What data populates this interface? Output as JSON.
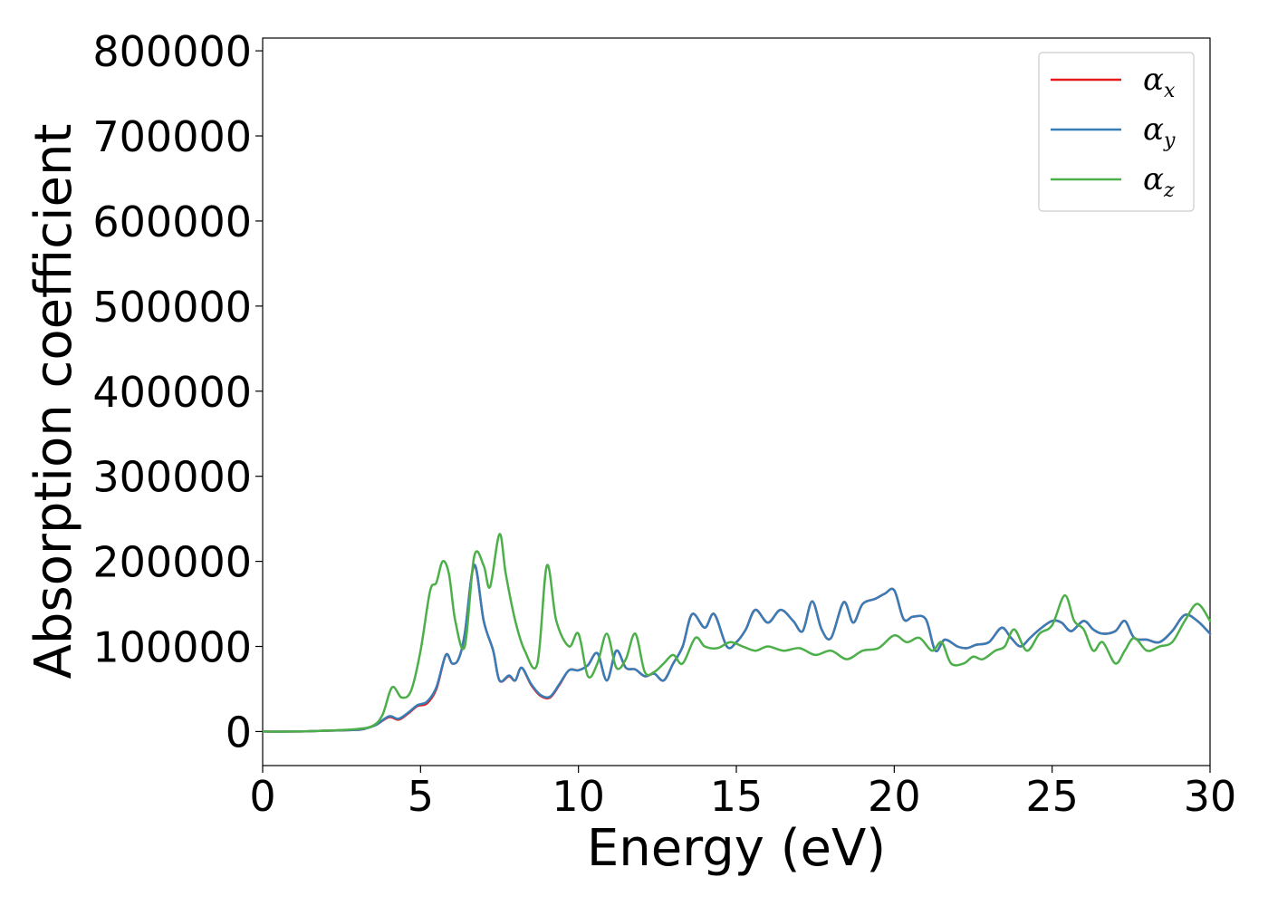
{
  "chart_data": {
    "type": "line",
    "title": "",
    "xlabel": "Energy (eV)",
    "ylabel": "Absorption coefficient",
    "xlim": [
      0,
      30
    ],
    "ylim": [
      -40000,
      815000
    ],
    "xticks": [
      0,
      5,
      10,
      15,
      20,
      25,
      30
    ],
    "yticks": [
      0,
      100000,
      200000,
      300000,
      400000,
      500000,
      600000,
      700000,
      800000
    ],
    "grid": false,
    "legend_position": "top-right",
    "colors": {
      "alpha_x": "#e41a1c",
      "alpha_y": "#377eb8",
      "alpha_z": "#4daf4a"
    },
    "legend": [
      {
        "symbol": "α",
        "sub": "x"
      },
      {
        "symbol": "α",
        "sub": "y"
      },
      {
        "symbol": "α",
        "sub": "z"
      }
    ],
    "series": [
      {
        "key": "alpha_x",
        "x": [
          0,
          1,
          2,
          3,
          3.3,
          3.6,
          4,
          4.3,
          4.6,
          4.9,
          5.2,
          5.5,
          5.8,
          6,
          6.2,
          6.4,
          6.7,
          7,
          7.3,
          7.5,
          7.8,
          8,
          8.2,
          8.5,
          8.8,
          9.1,
          9.4,
          9.7,
          10,
          10.3,
          10.6,
          10.9,
          11.2,
          11.5,
          11.8,
          12.1,
          12.4,
          12.7,
          13,
          13.3,
          13.6,
          14,
          14.3,
          14.7,
          15,
          15.3,
          15.6,
          16,
          16.4,
          16.8,
          17.1,
          17.4,
          17.7,
          18,
          18.4,
          18.7,
          19,
          19.4,
          19.7,
          20,
          20.3,
          20.6,
          21,
          21.3,
          21.6,
          22,
          22.3,
          22.6,
          23,
          23.4,
          23.7,
          24,
          24.3,
          24.6,
          25,
          25.3,
          25.6,
          26,
          26.3,
          26.6,
          27,
          27.3,
          27.6,
          28,
          28.4,
          28.8,
          29.2,
          29.6,
          30
        ],
        "y": [
          0,
          0,
          1000,
          2000,
          4000,
          8000,
          17000,
          14000,
          21000,
          30000,
          33000,
          50000,
          90000,
          80000,
          85000,
          115000,
          195000,
          130000,
          95000,
          60000,
          65000,
          60000,
          75000,
          55000,
          42000,
          40000,
          55000,
          72000,
          72000,
          78000,
          92000,
          60000,
          95000,
          75000,
          73000,
          65000,
          68000,
          60000,
          80000,
          100000,
          138000,
          122000,
          138000,
          100000,
          105000,
          120000,
          143000,
          128000,
          143000,
          130000,
          118000,
          153000,
          120000,
          110000,
          152000,
          128000,
          150000,
          156000,
          162000,
          166000,
          132000,
          135000,
          132000,
          95000,
          108000,
          100000,
          98000,
          102000,
          105000,
          122000,
          110000,
          100000,
          110000,
          120000,
          130000,
          128000,
          118000,
          130000,
          120000,
          115000,
          118000,
          130000,
          110000,
          108000,
          105000,
          118000,
          137000,
          130000,
          115000
        ]
      },
      {
        "key": "alpha_y",
        "x": [
          0,
          1,
          2,
          3,
          3.3,
          3.6,
          4,
          4.3,
          4.6,
          4.9,
          5.2,
          5.5,
          5.8,
          6,
          6.2,
          6.4,
          6.7,
          7,
          7.3,
          7.5,
          7.8,
          8,
          8.2,
          8.5,
          8.8,
          9.1,
          9.4,
          9.7,
          10,
          10.3,
          10.6,
          10.9,
          11.2,
          11.5,
          11.8,
          12.1,
          12.4,
          12.7,
          13,
          13.3,
          13.6,
          14,
          14.3,
          14.7,
          15,
          15.3,
          15.6,
          16,
          16.4,
          16.8,
          17.1,
          17.4,
          17.7,
          18,
          18.4,
          18.7,
          19,
          19.4,
          19.7,
          20,
          20.3,
          20.6,
          21,
          21.3,
          21.6,
          22,
          22.3,
          22.6,
          23,
          23.4,
          23.7,
          24,
          24.3,
          24.6,
          25,
          25.3,
          25.6,
          26,
          26.3,
          26.6,
          27,
          27.3,
          27.6,
          28,
          28.4,
          28.8,
          29.2,
          29.6,
          30
        ],
        "y": [
          0,
          0,
          1000,
          2000,
          4000,
          8000,
          18000,
          15000,
          22000,
          31000,
          35000,
          52000,
          90000,
          80000,
          85000,
          115000,
          196000,
          130000,
          95000,
          60000,
          66000,
          60000,
          75000,
          56000,
          43000,
          41000,
          56000,
          72000,
          72000,
          78000,
          92000,
          60000,
          95000,
          75000,
          73000,
          65000,
          68000,
          60000,
          80000,
          100000,
          138000,
          122000,
          138000,
          100000,
          105000,
          120000,
          143000,
          128000,
          143000,
          130000,
          118000,
          153000,
          120000,
          110000,
          152000,
          128000,
          150000,
          156000,
          162000,
          166000,
          132000,
          135000,
          132000,
          95000,
          108000,
          100000,
          98000,
          102000,
          105000,
          122000,
          110000,
          100000,
          110000,
          120000,
          130000,
          128000,
          118000,
          130000,
          120000,
          115000,
          118000,
          130000,
          110000,
          108000,
          105000,
          118000,
          137000,
          130000,
          115000
        ]
      },
      {
        "key": "alpha_z",
        "x": [
          0,
          1,
          2,
          3,
          3.5,
          3.8,
          4.1,
          4.4,
          4.7,
          5,
          5.3,
          5.5,
          5.7,
          5.9,
          6.1,
          6.4,
          6.7,
          7,
          7.2,
          7.5,
          7.7,
          8,
          8.3,
          8.7,
          9,
          9.3,
          9.7,
          10,
          10.3,
          10.6,
          10.9,
          11.2,
          11.5,
          11.8,
          12.1,
          12.4,
          12.7,
          13,
          13.3,
          13.7,
          14,
          14.4,
          14.8,
          15.2,
          15.6,
          16,
          16.5,
          17,
          17.5,
          18,
          18.5,
          19,
          19.5,
          20,
          20.4,
          20.8,
          21.2,
          21.5,
          21.8,
          22.2,
          22.5,
          22.8,
          23.2,
          23.5,
          23.8,
          24.2,
          24.6,
          25,
          25.4,
          25.7,
          26,
          26.3,
          26.6,
          27,
          27.3,
          27.6,
          28,
          28.4,
          28.8,
          29.2,
          29.6,
          30
        ],
        "y": [
          0,
          0,
          1000,
          3000,
          7000,
          20000,
          52000,
          40000,
          48000,
          95000,
          165000,
          175000,
          200000,
          185000,
          130000,
          100000,
          206000,
          195000,
          170000,
          232000,
          185000,
          130000,
          95000,
          80000,
          195000,
          130000,
          100000,
          115000,
          65000,
          80000,
          115000,
          75000,
          85000,
          115000,
          70000,
          70000,
          80000,
          90000,
          80000,
          110000,
          100000,
          98000,
          105000,
          100000,
          95000,
          100000,
          95000,
          98000,
          90000,
          95000,
          85000,
          95000,
          98000,
          113000,
          105000,
          110000,
          95000,
          105000,
          80000,
          80000,
          88000,
          85000,
          95000,
          100000,
          120000,
          95000,
          115000,
          125000,
          160000,
          130000,
          120000,
          95000,
          105000,
          80000,
          95000,
          110000,
          95000,
          100000,
          105000,
          130000,
          150000,
          130000
        ]
      }
    ]
  }
}
